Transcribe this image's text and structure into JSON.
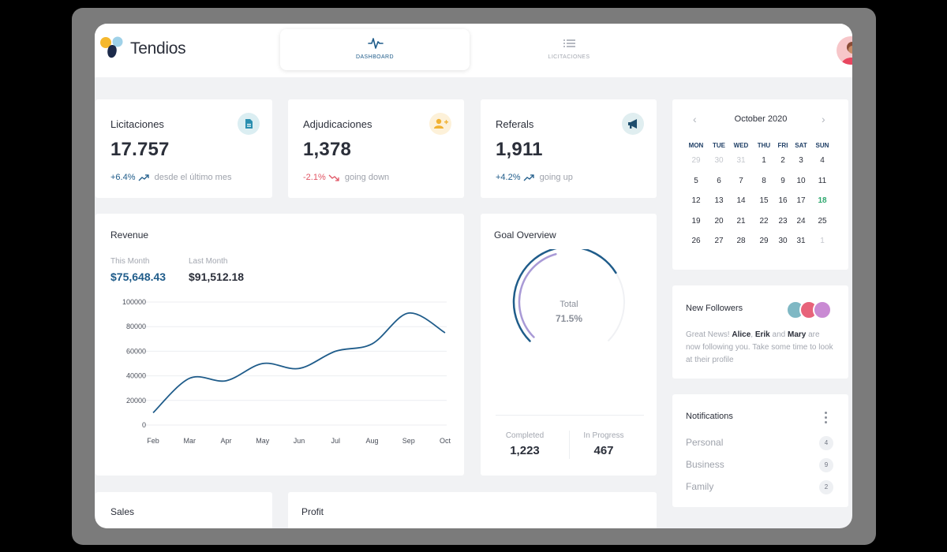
{
  "app": {
    "brand": "Tendios"
  },
  "nav": {
    "tabs": [
      {
        "label": "DASHBOARD",
        "icon": "activity-icon",
        "active": true
      },
      {
        "label": "LICITACIONES",
        "icon": "list-icon",
        "active": false
      }
    ]
  },
  "stats": [
    {
      "title": "Licitaciones",
      "value": "17.757",
      "change": "+6.4%",
      "direction": "up",
      "desc": "desde el último mes",
      "icon": "document-icon",
      "icon_bg": "#dbeef2",
      "icon_color": "#2a8fb0"
    },
    {
      "title": "Adjudicaciones",
      "value": "1,378",
      "change": "-2.1%",
      "direction": "down",
      "desc": "going down",
      "icon": "user-plus-icon",
      "icon_bg": "#fdf1d9",
      "icon_color": "#f1b233"
    },
    {
      "title": "Referals",
      "value": "1,911",
      "change": "+4.2%",
      "direction": "up",
      "desc": "going up",
      "icon": "megaphone-icon",
      "icon_bg": "#e0eef0",
      "icon_color": "#1f4e6e"
    }
  ],
  "revenue": {
    "title": "Revenue",
    "this_month_label": "This Month",
    "this_month_value": "$75,648.43",
    "last_month_label": "Last Month",
    "last_month_value": "$91,512.18"
  },
  "chart_data": {
    "type": "line",
    "categories": [
      "Feb",
      "Mar",
      "Apr",
      "May",
      "Jun",
      "Jul",
      "Aug",
      "Sep",
      "Oct"
    ],
    "series": [
      {
        "values": [
          10000,
          38000,
          36000,
          50000,
          46000,
          60000,
          66000,
          91000,
          75000
        ]
      }
    ],
    "yticks": [
      "100000",
      "80000",
      "60000",
      "40000",
      "20000",
      "0"
    ],
    "ylim": [
      0,
      100000
    ],
    "grid": true,
    "color": "#1f5c8a"
  },
  "goal": {
    "title": "Goal Overview",
    "total_label": "Total",
    "total_pct": "71.5%",
    "progress": 0.715,
    "completed_label": "Completed",
    "completed_value": "1,223",
    "inprogress_label": "In Progress",
    "inprogress_value": "467"
  },
  "calendar": {
    "month": "October 2020",
    "weekdays": [
      "MON",
      "TUE",
      "WED",
      "THU",
      "FRI",
      "SAT",
      "SUN"
    ],
    "weeks": [
      [
        "29",
        "30",
        "31",
        "1",
        "2",
        "3",
        "4"
      ],
      [
        "5",
        "6",
        "7",
        "8",
        "9",
        "10",
        "11"
      ],
      [
        "12",
        "13",
        "14",
        "15",
        "16",
        "17",
        "18"
      ],
      [
        "19",
        "20",
        "21",
        "22",
        "23",
        "24",
        "25"
      ],
      [
        "26",
        "27",
        "28",
        "29",
        "30",
        "31",
        "1"
      ]
    ],
    "today": "18"
  },
  "followers": {
    "title": "New Followers",
    "text_pre": "Great News! ",
    "name1": "Alice",
    "sep1": ", ",
    "name2": "Erik",
    "sep2": " and ",
    "name3": "Mary",
    "text_post": " are now following you. Take some time to look at their profile"
  },
  "notifications": {
    "title": "Notifications",
    "items": [
      {
        "label": "Personal",
        "count": "4"
      },
      {
        "label": "Business",
        "count": "9"
      },
      {
        "label": "Family",
        "count": "2"
      }
    ]
  },
  "bottom": {
    "sales_title": "Sales",
    "profit_title": "Profit"
  }
}
